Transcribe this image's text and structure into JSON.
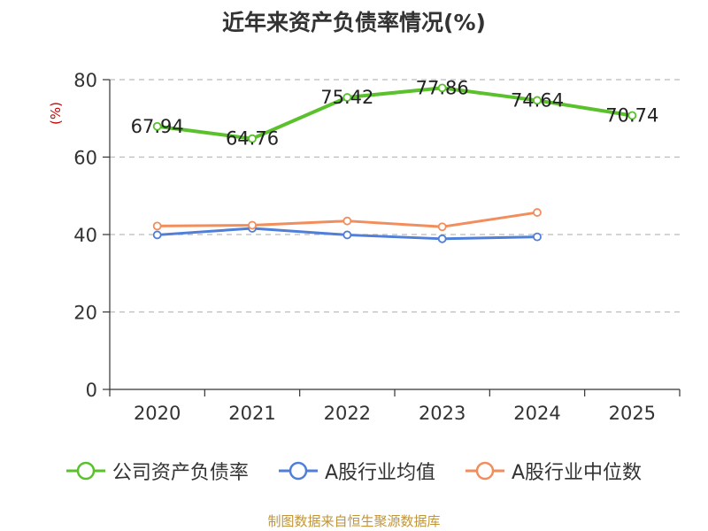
{
  "title": "近年来资产负债率情况(%)",
  "source": "制图数据来自恒生聚源数据库",
  "colors": {
    "company": "#5ac12c",
    "industry_avg": "#4f7fd8",
    "industry_median": "#f28e5c",
    "axis": "#333333",
    "grid": "#bbbbbb",
    "ylabel": "#cc0000"
  },
  "chart_data": {
    "type": "line",
    "title": "近年来资产负债率情况(%)",
    "ylabel": "(%)",
    "xlabel": "",
    "categories": [
      "2020",
      "2021",
      "2022",
      "2023",
      "2024",
      "2025"
    ],
    "ylim": [
      0,
      80
    ],
    "yticks": [
      0,
      20,
      40,
      60,
      80
    ],
    "grid": true,
    "legend": "bottom",
    "series": [
      {
        "name": "公司资产负债率",
        "color": "#5ac12c",
        "values": [
          67.94,
          64.76,
          75.42,
          77.86,
          74.64,
          70.74
        ],
        "labels": [
          "67.94",
          "64.76",
          "75.42",
          "77.86",
          "74.64",
          "70.74"
        ]
      },
      {
        "name": "A股行业均值",
        "color": "#4f7fd8",
        "values": [
          39.9,
          41.6,
          39.9,
          38.9,
          39.4,
          null
        ]
      },
      {
        "name": "A股行业中位数",
        "color": "#f28e5c",
        "values": [
          42.2,
          42.4,
          43.5,
          42.0,
          45.7,
          null
        ]
      }
    ]
  }
}
